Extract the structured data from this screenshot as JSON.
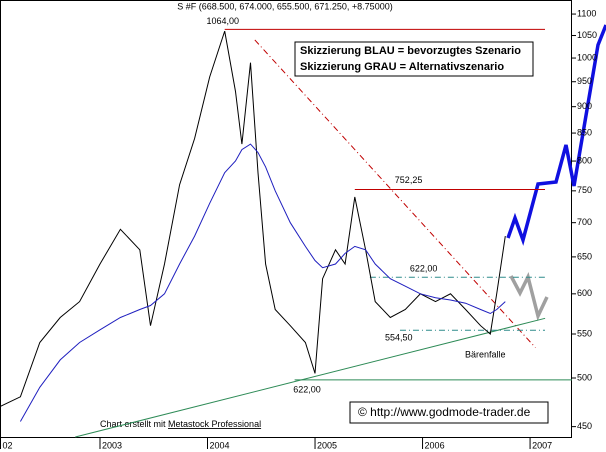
{
  "chart_data": {
    "type": "line",
    "title": "S #F (668.500, 674.000, 655.500, 671.250, +8.75000)",
    "log_scale": true,
    "grid": false,
    "xlim": [
      2002.07,
      2007.39
    ],
    "xticks": [
      {
        "value": 2002,
        "label": "02"
      },
      2003,
      2004,
      2005,
      2006,
      2007
    ],
    "ylim": [
      440,
      1134
    ],
    "yticks": [
      450,
      500,
      550,
      600,
      650,
      700,
      750,
      800,
      850,
      900,
      950,
      1000,
      1050,
      1100
    ],
    "x": [
      2002.07,
      2002.26,
      2002.44,
      2002.63,
      2002.81,
      2003.0,
      2003.19,
      2003.37,
      2003.47,
      2003.6,
      2003.74,
      2003.88,
      2004.02,
      2004.16,
      2004.26,
      2004.32,
      2004.4,
      2004.47,
      2004.54,
      2004.63,
      2004.77,
      2004.91,
      2005.0,
      2005.07,
      2005.19,
      2005.28,
      2005.37,
      2005.47,
      2005.56,
      2005.7,
      2005.84,
      2005.98,
      2006.12,
      2006.26,
      2006.4,
      2006.54,
      2006.63,
      2006.69,
      2006.77
    ],
    "series": [
      {
        "color": "#000000",
        "values": [
          470,
          480,
          540,
          570,
          590,
          640,
          690,
          660,
          560,
          640,
          760,
          840,
          960,
          1060,
          930,
          830,
          990,
          780,
          640,
          580,
          560,
          540,
          505,
          620,
          660,
          640,
          740,
          660,
          590,
          570,
          580,
          600,
          590,
          600,
          580,
          560,
          550,
          600,
          680
        ]
      },
      {
        "color": "#1f1fbf",
        "values": [
          null,
          455,
          490,
          520,
          540,
          555,
          570,
          580,
          585,
          600,
          640,
          680,
          730,
          780,
          800,
          820,
          830,
          815,
          790,
          750,
          700,
          665,
          645,
          635,
          640,
          655,
          665,
          660,
          640,
          620,
          610,
          600,
          595,
          592,
          588,
          580,
          575,
          580,
          590
        ]
      }
    ],
    "levels": [
      {
        "value": 1064,
        "label": "1064,00",
        "color": "#c00000",
        "from": 2004.16
      },
      {
        "value": 752.25,
        "label": "752,25",
        "color": "#c00000",
        "from": 2005.37
      },
      {
        "value": 622,
        "label": "622,00",
        "color": "#2e8b8b",
        "from": 2005.51
      },
      {
        "value": 554.5,
        "label": "554,50",
        "color": "#2e8b8b",
        "from": 2005.79
      },
      {
        "value": 498,
        "color": "#2e8b57",
        "from": 2004.81
      }
    ],
    "trendlines": [
      {
        "color": "#c00000",
        "x": [
          2004.44,
          2007.05
        ],
        "values": [
          1040,
          534
        ]
      },
      {
        "color": "#2e8b57",
        "x": [
          2002.77,
          2007.14
        ],
        "values": [
          440,
          569
        ]
      }
    ],
    "annotations": [
      "622,00",
      "Bärenfalle"
    ],
    "legend_lines": [
      "Skizzierung BLAU = bevorzugtes Szenario",
      "Skizzierung GRAU = Alternativszenario"
    ],
    "footer": [
      "Chart erstellt mit",
      "Metastock Professional"
    ],
    "copyright": "© http://www.godmode-trader.de"
  }
}
